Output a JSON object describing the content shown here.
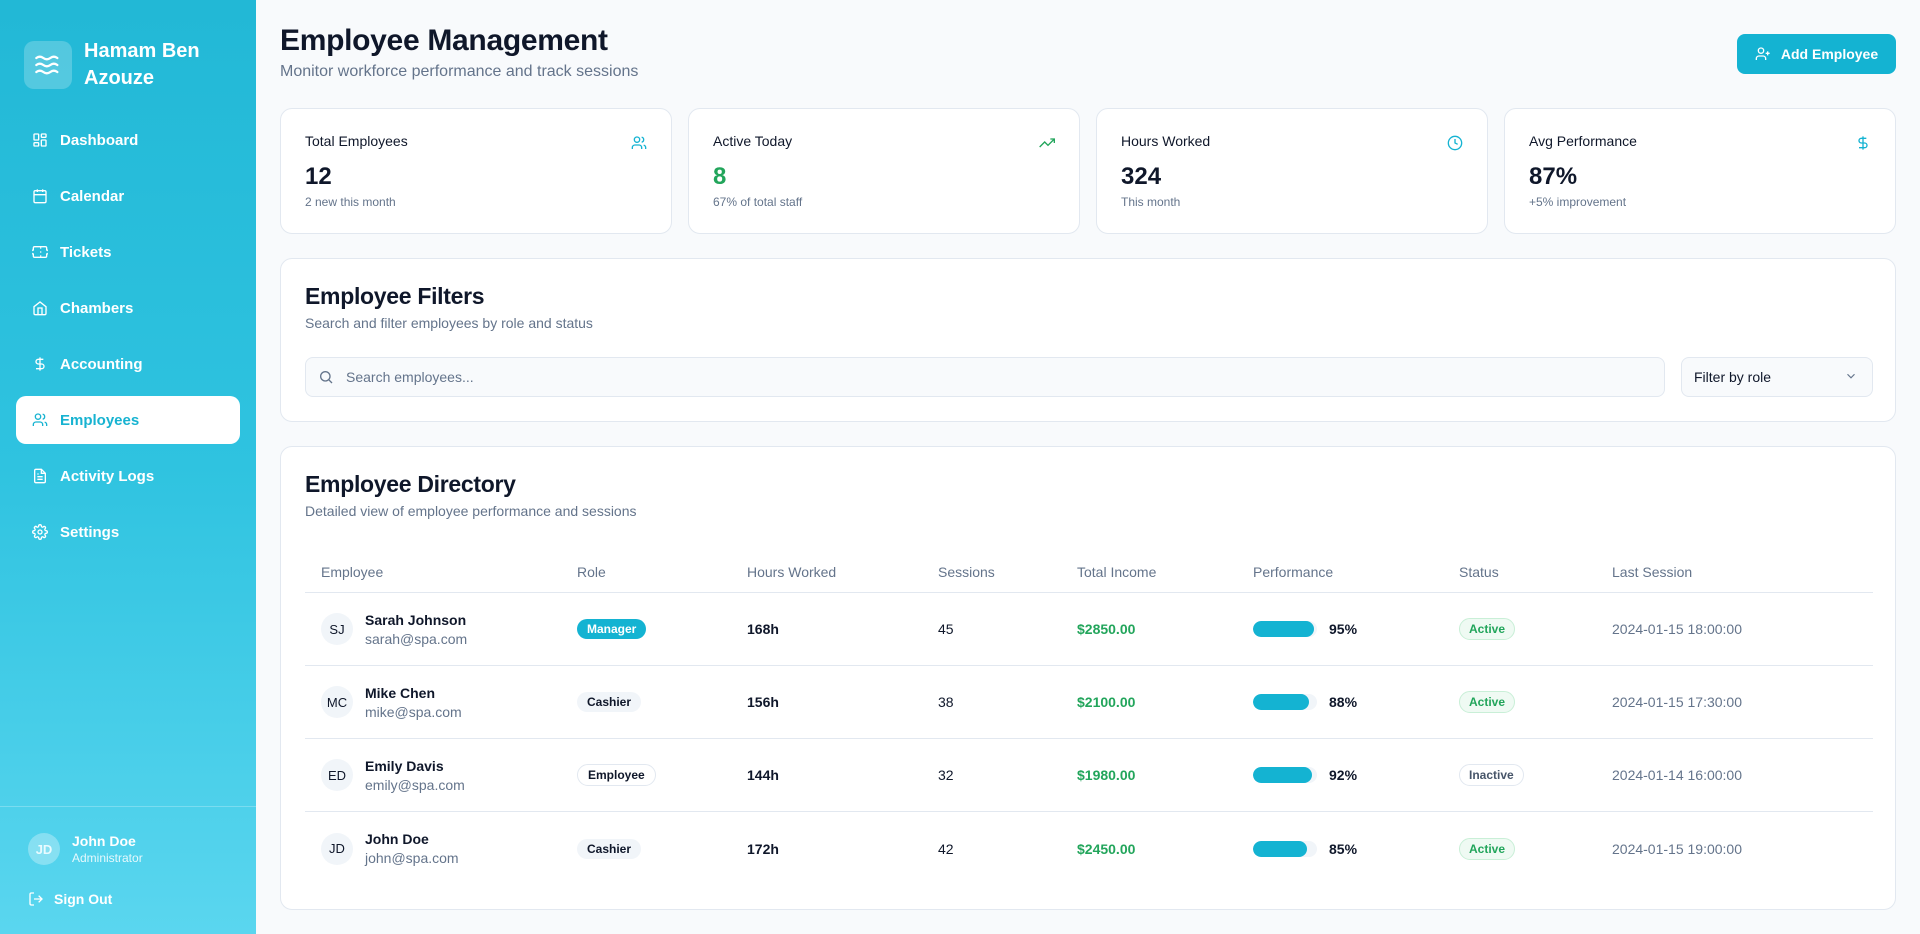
{
  "sidebar": {
    "brand": "Hamam Ben Azouze",
    "items": [
      {
        "label": "Dashboard",
        "icon": "grid-icon",
        "active": false
      },
      {
        "label": "Calendar",
        "icon": "calendar-icon",
        "active": false
      },
      {
        "label": "Tickets",
        "icon": "ticket-icon",
        "active": false
      },
      {
        "label": "Chambers",
        "icon": "home-icon",
        "active": false
      },
      {
        "label": "Accounting",
        "icon": "dollar-icon",
        "active": false
      },
      {
        "label": "Employees",
        "icon": "users-icon",
        "active": true
      },
      {
        "label": "Activity Logs",
        "icon": "file-icon",
        "active": false
      },
      {
        "label": "Settings",
        "icon": "gear-icon",
        "active": false
      }
    ],
    "user": {
      "initials": "JD",
      "name": "John Doe",
      "role": "Administrator"
    },
    "signout": "Sign Out"
  },
  "header": {
    "title": "Employee Management",
    "subtitle": "Monitor workforce performance and track sessions",
    "add_button": "Add Employee"
  },
  "stats": [
    {
      "label": "Total Employees",
      "value": "12",
      "note": "2 new this month",
      "icon": "users-icon"
    },
    {
      "label": "Active Today",
      "value": "8",
      "note": "67% of total staff",
      "icon": "trending-up-icon"
    },
    {
      "label": "Hours Worked",
      "value": "324",
      "note": "This month",
      "icon": "clock-icon"
    },
    {
      "label": "Avg Performance",
      "value": "87%",
      "note": "+5% improvement",
      "icon": "dollar-icon"
    }
  ],
  "filters": {
    "title": "Employee Filters",
    "subtitle": "Search and filter employees by role and status",
    "search_placeholder": "Search employees...",
    "role_select": "Filter by role"
  },
  "directory": {
    "title": "Employee Directory",
    "subtitle": "Detailed view of employee performance and sessions",
    "columns": [
      "Employee",
      "Role",
      "Hours Worked",
      "Sessions",
      "Total Income",
      "Performance",
      "Status",
      "Last Session"
    ],
    "rows": [
      {
        "initials": "SJ",
        "name": "Sarah Johnson",
        "email": "sarah@spa.com",
        "role": "Manager",
        "hours": "168h",
        "sessions": "45",
        "income": "$2850.00",
        "performance": 95,
        "performance_label": "95%",
        "status": "Active",
        "last_session": "2024-01-15 18:00:00"
      },
      {
        "initials": "MC",
        "name": "Mike Chen",
        "email": "mike@spa.com",
        "role": "Cashier",
        "hours": "156h",
        "sessions": "38",
        "income": "$2100.00",
        "performance": 88,
        "performance_label": "88%",
        "status": "Active",
        "last_session": "2024-01-15 17:30:00"
      },
      {
        "initials": "ED",
        "name": "Emily Davis",
        "email": "emily@spa.com",
        "role": "Employee",
        "hours": "144h",
        "sessions": "32",
        "income": "$1980.00",
        "performance": 92,
        "performance_label": "92%",
        "status": "Inactive",
        "last_session": "2024-01-14 16:00:00"
      },
      {
        "initials": "JD",
        "name": "John Doe",
        "email": "john@spa.com",
        "role": "Cashier",
        "hours": "172h",
        "sessions": "42",
        "income": "$2450.00",
        "performance": 85,
        "performance_label": "85%",
        "status": "Active",
        "last_session": "2024-01-15 19:00:00"
      }
    ]
  }
}
